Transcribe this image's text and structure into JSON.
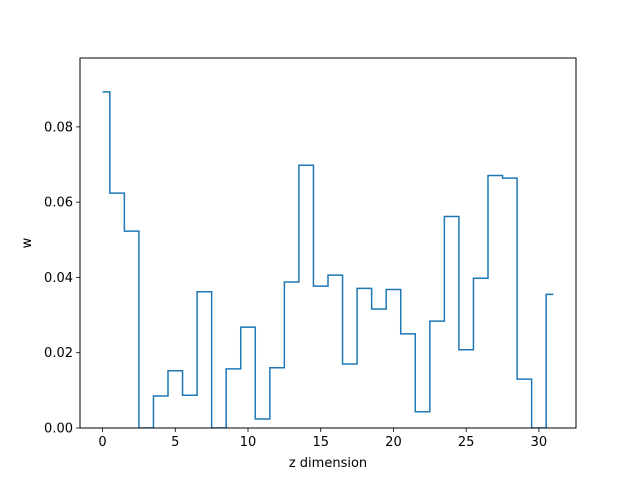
{
  "chart_data": {
    "type": "line",
    "drawstyle": "steps-mid",
    "title": "",
    "xlabel": "z dimension",
    "ylabel": "w",
    "xlim": [
      -1.55,
      32.55
    ],
    "ylim": [
      0.0,
      0.0983
    ],
    "xticks": [
      0,
      5,
      10,
      15,
      20,
      25,
      30
    ],
    "yticks": [
      0.0,
      0.02,
      0.04,
      0.06,
      0.08
    ],
    "ytick_labels": [
      "0.00",
      "0.02",
      "0.04",
      "0.06",
      "0.08"
    ],
    "grid": false,
    "line_color": "#1f77b4",
    "x": [
      0,
      1,
      2,
      3,
      4,
      5,
      6,
      7,
      8,
      9,
      10,
      11,
      12,
      13,
      14,
      15,
      16,
      17,
      18,
      19,
      20,
      21,
      22,
      23,
      24,
      25,
      26,
      27,
      28,
      29,
      30,
      31
    ],
    "y": [
      0.0893,
      0.0624,
      0.0523,
      0.0,
      0.0085,
      0.0152,
      0.0087,
      0.0362,
      0.0,
      0.0157,
      0.0268,
      0.0024,
      0.016,
      0.0388,
      0.0698,
      0.0377,
      0.0406,
      0.017,
      0.0371,
      0.0316,
      0.0368,
      0.025,
      0.0043,
      0.0284,
      0.0562,
      0.0208,
      0.0398,
      0.0671,
      0.0664,
      0.013,
      0.0,
      0.0355
    ]
  }
}
